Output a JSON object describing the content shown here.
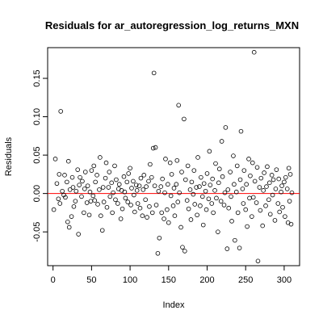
{
  "chart_data": {
    "type": "scatter",
    "title": "Residuals for ar_autoregression_log_returns_MXN",
    "xlabel": "Index",
    "ylabel": "Residuals",
    "xlim": [
      -7,
      320
    ],
    "ylim": [
      -0.094,
      0.19
    ],
    "x_ticks": [
      0,
      50,
      100,
      150,
      200,
      250,
      300
    ],
    "x_tick_labels": [
      "0",
      "50",
      "100",
      "150",
      "200",
      "250",
      "300"
    ],
    "y_ticks": [
      -0.05,
      0.0,
      0.05,
      0.1,
      0.15
    ],
    "y_tick_labels": [
      "-0.05",
      "0.00",
      "0.05",
      "0.10",
      "0.15"
    ],
    "reference_line": {
      "y": 0.0,
      "color": "#ff0000"
    },
    "point_style": "open-circle",
    "grid": false,
    "series": [
      {
        "points": [
          [
            1,
            -0.021
          ],
          [
            3,
            0.045
          ],
          [
            5,
            0.013
          ],
          [
            7,
            -0.007
          ],
          [
            8,
            0.025
          ],
          [
            9,
            -0.013
          ],
          [
            10,
            0.107
          ],
          [
            12,
            0.003
          ],
          [
            14,
            -0.002
          ],
          [
            15,
            0.024
          ],
          [
            16,
            -0.005
          ],
          [
            18,
            0.015
          ],
          [
            19,
            -0.037
          ],
          [
            20,
            0.042
          ],
          [
            21,
            -0.044
          ],
          [
            22,
            0.005
          ],
          [
            24,
            -0.03
          ],
          [
            25,
            0.021
          ],
          [
            26,
            0.008
          ],
          [
            27,
            -0.017
          ],
          [
            29,
            -0.01
          ],
          [
            30,
            0.003
          ],
          [
            32,
            0.031
          ],
          [
            33,
            -0.053
          ],
          [
            34,
            0.011
          ],
          [
            35,
            0.021
          ],
          [
            37,
            -0.004
          ],
          [
            38,
            0.016
          ],
          [
            40,
            -0.025
          ],
          [
            41,
            0.006
          ],
          [
            42,
            0.028
          ],
          [
            44,
            -0.012
          ],
          [
            45,
            0.01
          ],
          [
            47,
            -0.028
          ],
          [
            48,
            0.002
          ],
          [
            49,
            -0.01
          ],
          [
            50,
            0.03
          ],
          [
            52,
            -0.003
          ],
          [
            53,
            0.036
          ],
          [
            54,
            -0.009
          ],
          [
            55,
            0.015
          ],
          [
            57,
            0.024
          ],
          [
            58,
            -0.014
          ],
          [
            60,
            0.005
          ],
          [
            61,
            0.047
          ],
          [
            62,
            -0.029
          ],
          [
            64,
            -0.048
          ],
          [
            65,
            0.008
          ],
          [
            66,
            -0.011
          ],
          [
            68,
            0.02
          ],
          [
            69,
            0.04
          ],
          [
            70,
            -0.018
          ],
          [
            72,
            0.008
          ],
          [
            73,
            0.028
          ],
          [
            74,
            -0.004
          ],
          [
            76,
            0.014
          ],
          [
            77,
            -0.025
          ],
          [
            78,
            0.001
          ],
          [
            80,
            0.036
          ],
          [
            81,
            -0.008
          ],
          [
            82,
            0.018
          ],
          [
            84,
            -0.013
          ],
          [
            85,
            0.006
          ],
          [
            86,
            0.012
          ],
          [
            88,
            -0.033
          ],
          [
            89,
            0.004
          ],
          [
            90,
            -0.02
          ],
          [
            92,
            0.022
          ],
          [
            93,
            0.002
          ],
          [
            94,
            -0.006
          ],
          [
            96,
            0.015
          ],
          [
            97,
            -0.011
          ],
          [
            98,
            0.026
          ],
          [
            100,
            0.033
          ],
          [
            101,
            -0.015
          ],
          [
            102,
            0.007
          ],
          [
            104,
            0.016
          ],
          [
            105,
            -0.002
          ],
          [
            106,
            -0.024
          ],
          [
            108,
            0.011
          ],
          [
            109,
            0.004
          ],
          [
            110,
            -0.013
          ],
          [
            112,
            0.01
          ],
          [
            113,
            -0.019
          ],
          [
            114,
            0.02
          ],
          [
            116,
            -0.029
          ],
          [
            117,
            0.005
          ],
          [
            118,
            0.024
          ],
          [
            120,
            -0.008
          ],
          [
            121,
            0.009
          ],
          [
            122,
            -0.031
          ],
          [
            124,
            0.016
          ],
          [
            125,
            -0.017
          ],
          [
            126,
            0.038
          ],
          [
            128,
            0.021
          ],
          [
            129,
            -0.025
          ],
          [
            130,
            0.059
          ],
          [
            131,
            0.157
          ],
          [
            132,
            0.01
          ],
          [
            133,
            0.06
          ],
          [
            134,
            -0.015
          ],
          [
            136,
            -0.078
          ],
          [
            137,
            0.003
          ],
          [
            138,
            -0.058
          ],
          [
            140,
            0.009
          ],
          [
            141,
            -0.025
          ],
          [
            142,
            0.019
          ],
          [
            144,
            -0.033
          ],
          [
            145,
            0.001
          ],
          [
            146,
            0.045
          ],
          [
            148,
            -0.021
          ],
          [
            149,
            0.012
          ],
          [
            150,
            -0.038
          ],
          [
            152,
            0.04
          ],
          [
            153,
            -0.003
          ],
          [
            154,
            0.025
          ],
          [
            156,
            -0.016
          ],
          [
            157,
            0.007
          ],
          [
            158,
            -0.029
          ],
          [
            160,
            0.012
          ],
          [
            161,
            0.043
          ],
          [
            162,
            -0.011
          ],
          [
            163,
            0.115
          ],
          [
            164,
            0.001
          ],
          [
            166,
            -0.044
          ],
          [
            167,
            0.028
          ],
          [
            168,
            -0.07
          ],
          [
            170,
            0.097
          ],
          [
            171,
            -0.075
          ],
          [
            172,
            0.018
          ],
          [
            174,
            -0.009
          ],
          [
            175,
            0.036
          ],
          [
            176,
            -0.02
          ],
          [
            178,
            0.005
          ],
          [
            179,
            -0.034
          ],
          [
            180,
            0.015
          ],
          [
            182,
            -0.001
          ],
          [
            183,
            0.03
          ],
          [
            184,
            -0.014
          ],
          [
            186,
            0.008
          ],
          [
            187,
            -0.028
          ],
          [
            188,
            0.047
          ],
          [
            190,
            0.009
          ],
          [
            191,
            -0.016
          ],
          [
            192,
            0.021
          ],
          [
            194,
            -0.004
          ],
          [
            195,
            -0.041
          ],
          [
            196,
            0.013
          ],
          [
            198,
            0.003
          ],
          [
            199,
            -0.021
          ],
          [
            200,
            0.026
          ],
          [
            202,
            -0.007
          ],
          [
            203,
            0.055
          ],
          [
            204,
            0.011
          ],
          [
            206,
            -0.013
          ],
          [
            207,
            0.019
          ],
          [
            208,
            -0.025
          ],
          [
            210,
            0.004
          ],
          [
            211,
            0.039
          ],
          [
            212,
            -0.006
          ],
          [
            214,
            -0.05
          ],
          [
            215,
            0.014
          ],
          [
            216,
            0.032
          ],
          [
            218,
            -0.01
          ],
          [
            219,
            0.068
          ],
          [
            220,
            0.022
          ],
          [
            222,
            -0.015
          ],
          [
            223,
            0.001
          ],
          [
            224,
            0.086
          ],
          [
            226,
            -0.072
          ],
          [
            227,
            0.005
          ],
          [
            228,
            -0.019
          ],
          [
            230,
            0.028
          ],
          [
            231,
            -0.004
          ],
          [
            232,
            -0.036
          ],
          [
            234,
            0.049
          ],
          [
            235,
            0.012
          ],
          [
            236,
            -0.061
          ],
          [
            238,
            0.002
          ],
          [
            239,
            0.036
          ],
          [
            240,
            -0.025
          ],
          [
            242,
            -0.071
          ],
          [
            243,
            0.018
          ],
          [
            244,
            0.081
          ],
          [
            246,
            0.006
          ],
          [
            247,
            -0.013
          ],
          [
            248,
            0.03
          ],
          [
            250,
            -0.021
          ],
          [
            251,
            0.012
          ],
          [
            252,
            -0.043
          ],
          [
            254,
            0.045
          ],
          [
            255,
            -0.006
          ],
          [
            256,
            0.023
          ],
          [
            258,
            -0.03
          ],
          [
            259,
            0.04
          ],
          [
            260,
            -0.005
          ],
          [
            261,
            0.184
          ],
          [
            262,
            0.016
          ],
          [
            264,
            -0.012
          ],
          [
            265,
            0.034
          ],
          [
            266,
            -0.088
          ],
          [
            268,
            0.008
          ],
          [
            269,
            -0.022
          ],
          [
            270,
            0.02
          ],
          [
            272,
            -0.042
          ],
          [
            273,
            0.004
          ],
          [
            274,
            0.027
          ],
          [
            276,
            -0.016
          ],
          [
            277,
            0.009
          ],
          [
            278,
            0.035
          ],
          [
            280,
            -0.008
          ],
          [
            281,
            0.014
          ],
          [
            282,
            -0.027
          ],
          [
            284,
            0.024
          ],
          [
            285,
            -0.002
          ],
          [
            286,
            0.018
          ],
          [
            288,
            -0.035
          ],
          [
            289,
            0.006
          ],
          [
            290,
            0.031
          ],
          [
            292,
            -0.013
          ],
          [
            293,
            0.019
          ],
          [
            294,
            -0.024
          ],
          [
            296,
            0.002
          ],
          [
            297,
            0.01
          ],
          [
            298,
            -0.018
          ],
          [
            300,
            0.015
          ],
          [
            301,
            -0.03
          ],
          [
            302,
            0.021
          ],
          [
            304,
            0.006
          ],
          [
            305,
            -0.038
          ],
          [
            306,
            0.033
          ],
          [
            307,
            -0.01
          ],
          [
            308,
            0.025
          ],
          [
            309,
            -0.04
          ],
          [
            310,
            0.001
          ]
        ]
      }
    ]
  }
}
